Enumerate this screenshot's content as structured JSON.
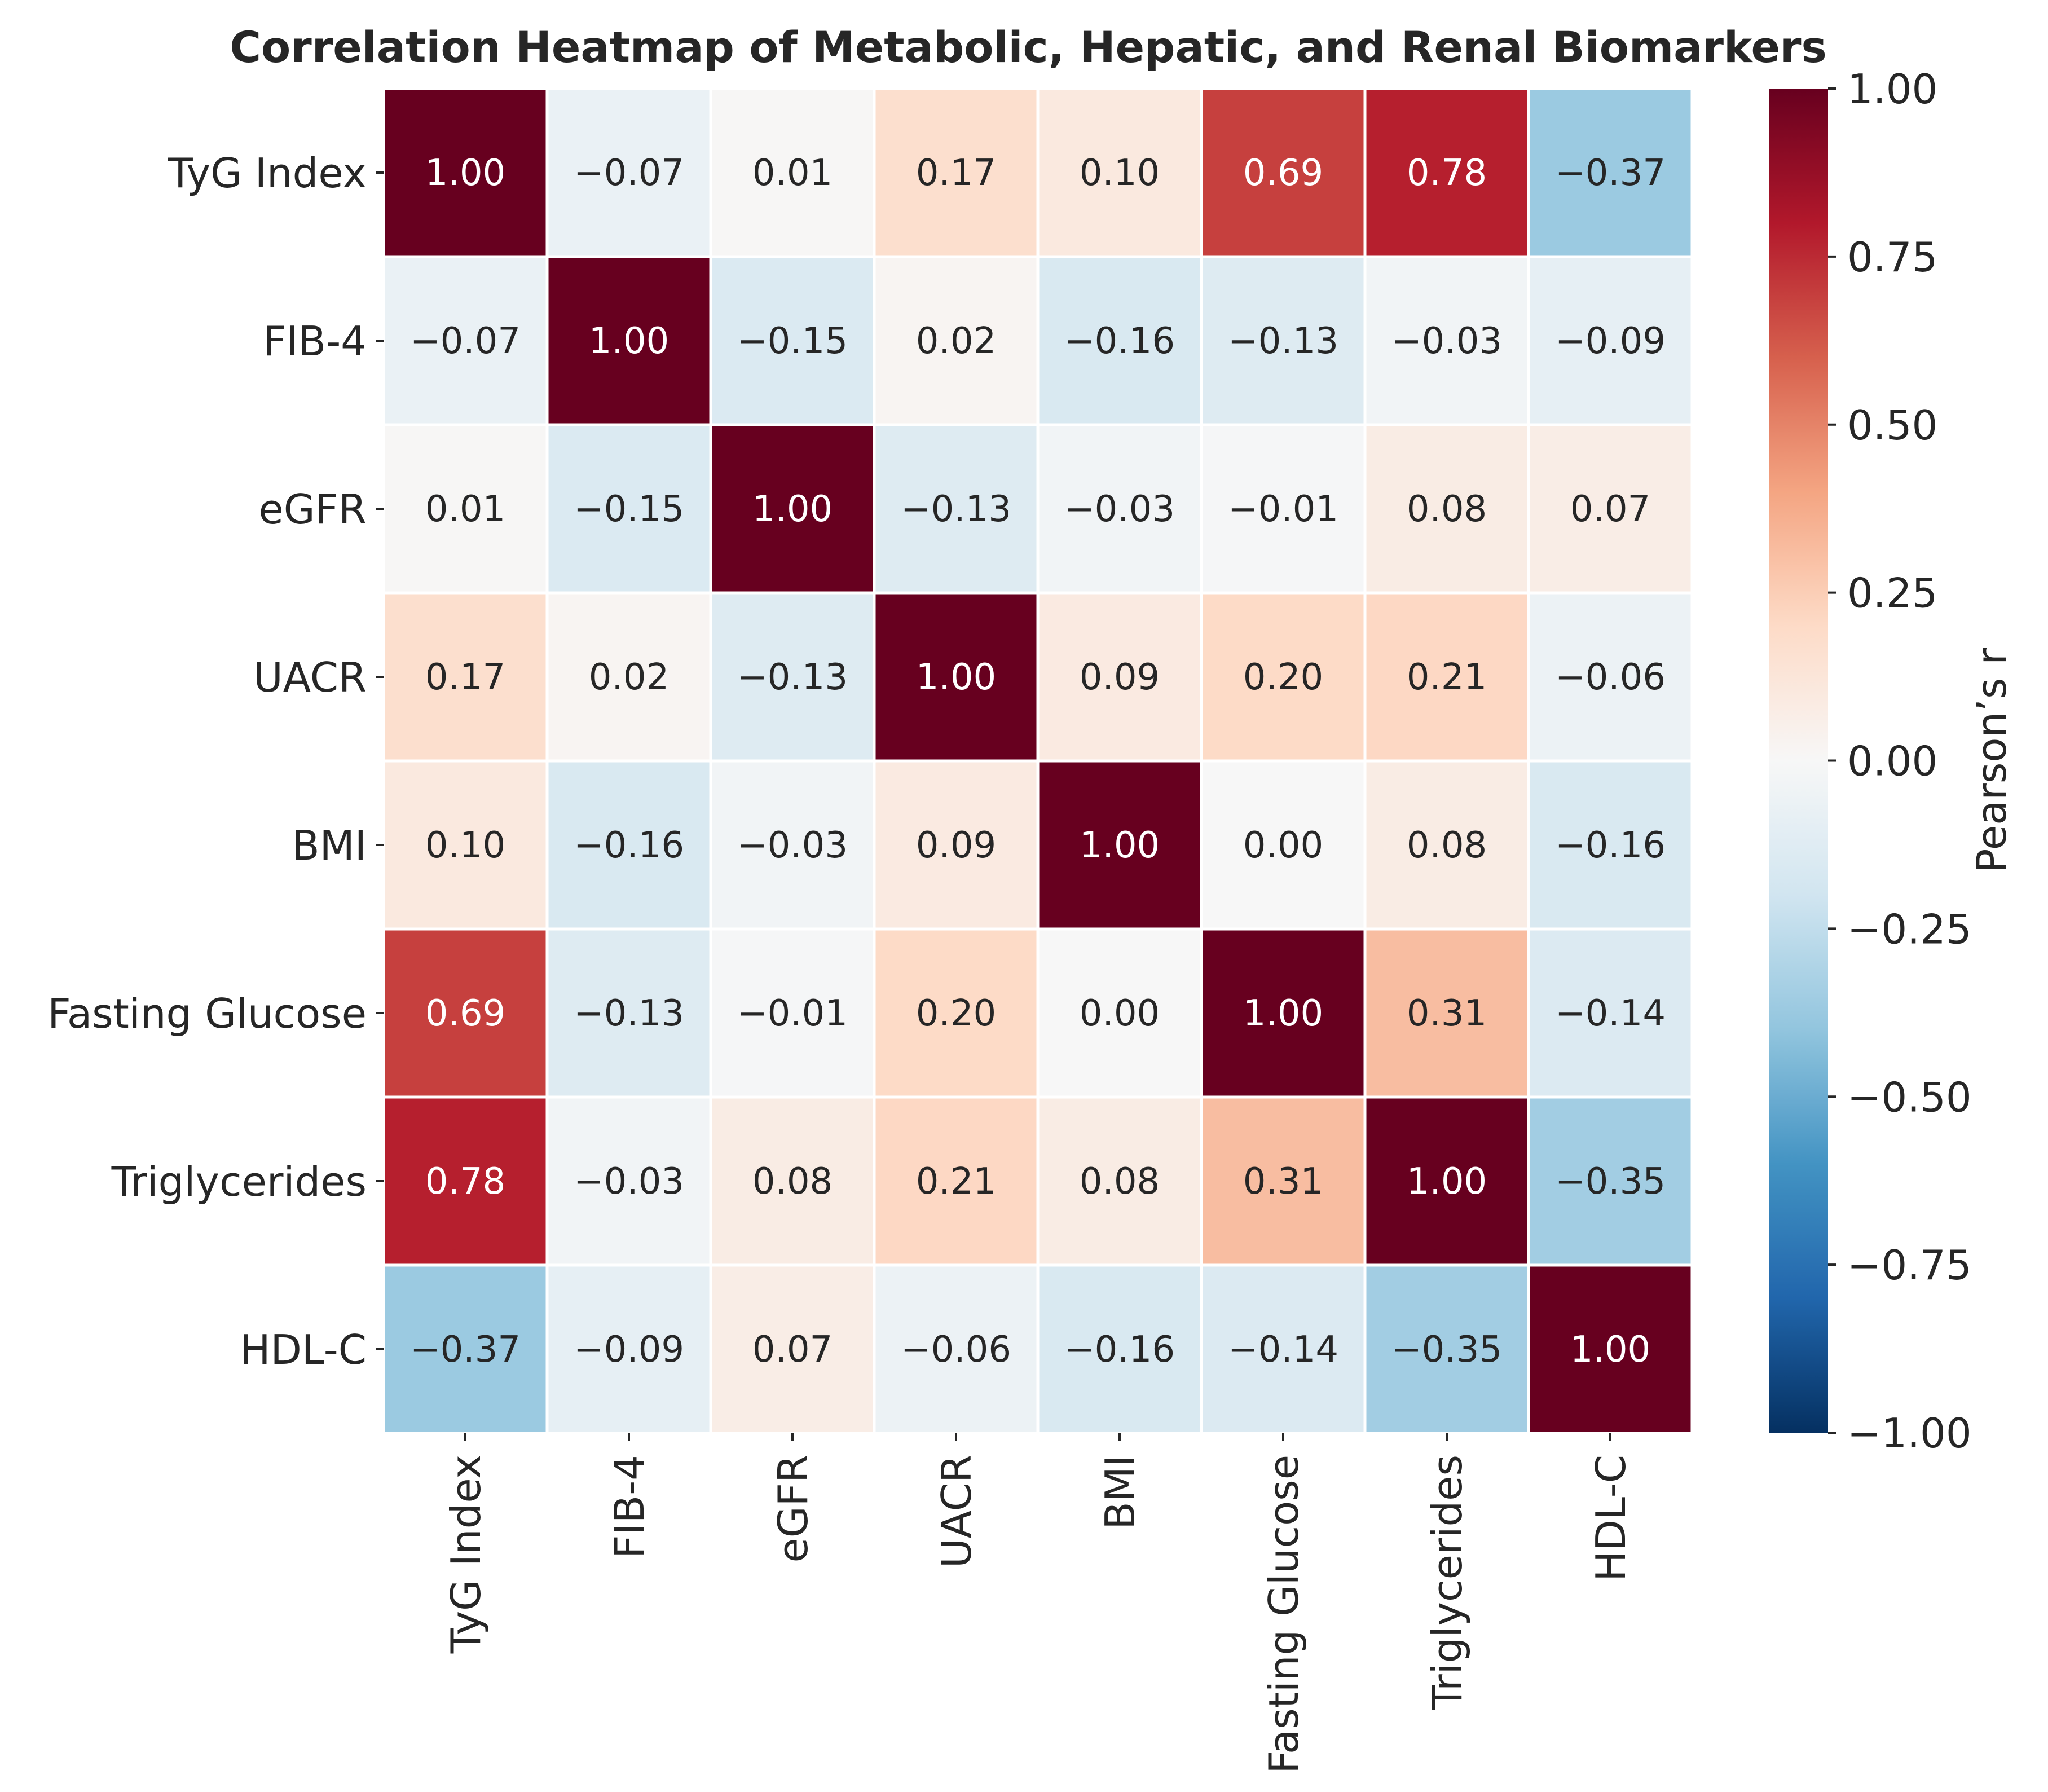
{
  "chart_data": {
    "type": "heatmap",
    "title": "Correlation Heatmap of Metabolic, Hepatic, and Renal Biomarkers",
    "row_labels": [
      "TyG Index",
      "FIB-4",
      "eGFR",
      "UACR",
      "BMI",
      "Fasting Glucose",
      "Triglycerides",
      "HDL-C"
    ],
    "col_labels": [
      "TyG Index",
      "FIB-4",
      "eGFR",
      "UACR",
      "BMI",
      "Fasting Glucose",
      "Triglycerides",
      "HDL-C"
    ],
    "values": [
      [
        1.0,
        -0.07,
        0.01,
        0.17,
        0.1,
        0.69,
        0.78,
        -0.37
      ],
      [
        -0.07,
        1.0,
        -0.15,
        0.02,
        -0.16,
        -0.13,
        -0.03,
        -0.09
      ],
      [
        0.01,
        -0.15,
        1.0,
        -0.13,
        -0.03,
        -0.01,
        0.08,
        0.07
      ],
      [
        0.17,
        0.02,
        -0.13,
        1.0,
        0.09,
        0.2,
        0.21,
        -0.06
      ],
      [
        0.1,
        -0.16,
        -0.03,
        0.09,
        1.0,
        0.0,
        0.08,
        -0.16
      ],
      [
        0.69,
        -0.13,
        -0.01,
        0.2,
        0.0,
        1.0,
        0.31,
        -0.14
      ],
      [
        0.78,
        -0.03,
        0.08,
        0.21,
        0.08,
        0.31,
        1.0,
        -0.35
      ],
      [
        -0.37,
        -0.09,
        0.07,
        -0.06,
        -0.16,
        -0.14,
        -0.35,
        1.0
      ]
    ],
    "colorbar": {
      "label": "Pearson’s r",
      "vmin": -1.0,
      "vmax": 1.0,
      "ticks": [
        1.0,
        0.75,
        0.5,
        0.25,
        0.0,
        -0.25,
        -0.5,
        -0.75,
        -1.0
      ],
      "tick_labels": [
        "1.00",
        "0.75",
        "0.50",
        "0.25",
        "0.00",
        "−0.25",
        "−0.50",
        "−0.75",
        "−1.00"
      ]
    },
    "colormap": "RdBu_r",
    "annotations": true,
    "annotation_format": "2 decimals, unicode minus",
    "gridline_color": "#ffffff"
  }
}
